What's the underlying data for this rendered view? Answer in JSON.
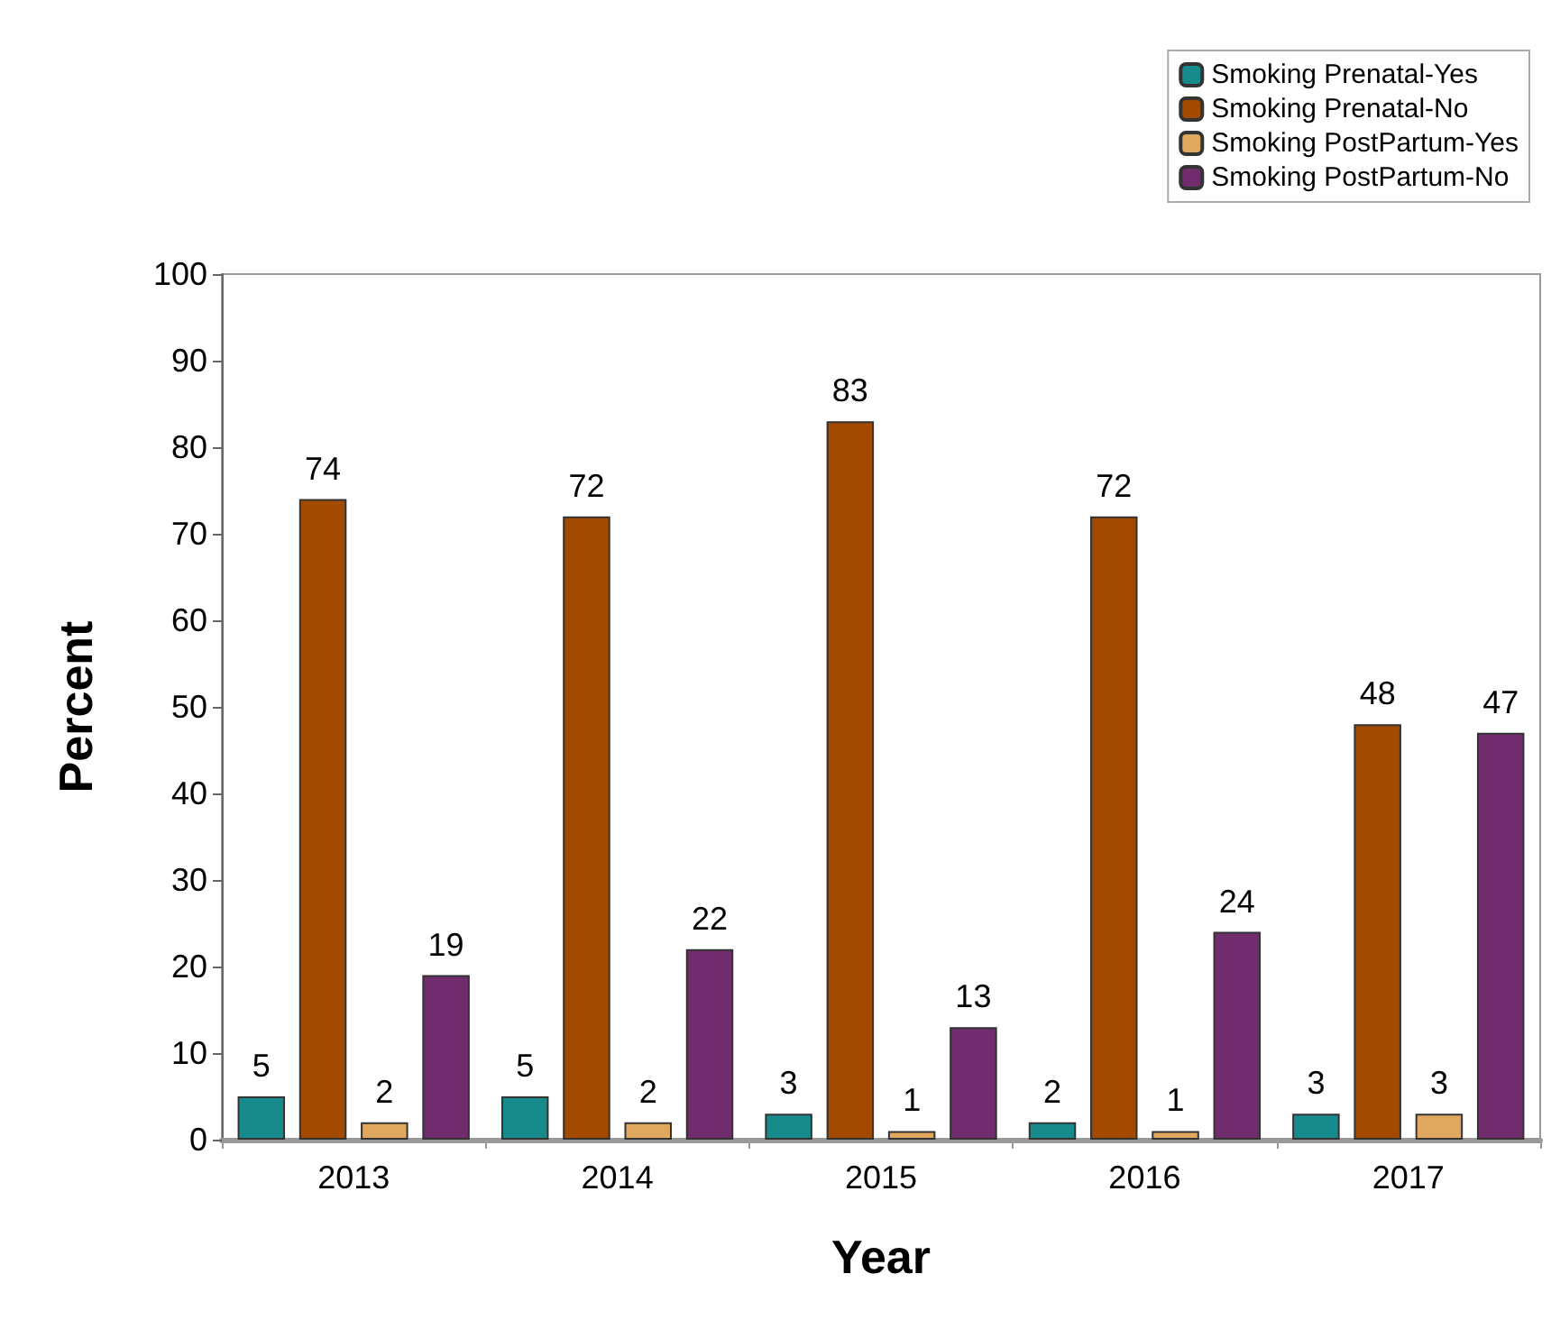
{
  "chart_data": {
    "type": "bar",
    "xlabel": "Year",
    "ylabel": "Percent",
    "categories": [
      "2013",
      "2014",
      "2015",
      "2016",
      "2017"
    ],
    "series": [
      {
        "name": "Smoking Prenatal-Yes",
        "color": "#178a8c",
        "values": [
          5,
          5,
          3,
          2,
          3
        ]
      },
      {
        "name": "Smoking Prenatal-No",
        "color": "#a24a00",
        "values": [
          74,
          72,
          83,
          72,
          48
        ]
      },
      {
        "name": "Smoking PostPartum-Yes",
        "color": "#e0a85e",
        "values": [
          2,
          2,
          1,
          1,
          3
        ]
      },
      {
        "name": "Smoking PostPartum-No",
        "color": "#702c6c",
        "values": [
          19,
          22,
          13,
          24,
          47
        ]
      }
    ],
    "ylim": [
      0,
      100
    ],
    "yticks": [
      0,
      10,
      20,
      30,
      40,
      50,
      60,
      70,
      80,
      90,
      100
    ],
    "grid": false,
    "legend": "top right",
    "data_labels": true
  }
}
